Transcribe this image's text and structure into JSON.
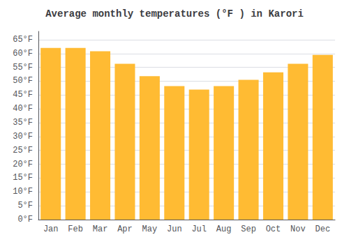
{
  "chart_data": {
    "type": "bar",
    "title": "Average monthly temperatures (°F ) in Karori",
    "categories": [
      "Jan",
      "Feb",
      "Mar",
      "Apr",
      "May",
      "Jun",
      "Jul",
      "Aug",
      "Sep",
      "Oct",
      "Nov",
      "Dec"
    ],
    "values": [
      62.0,
      62.0,
      60.8,
      56.3,
      51.8,
      48.2,
      47.0,
      48.2,
      50.5,
      53.2,
      56.3,
      59.5
    ],
    "color": "#FFBB33",
    "ylim": [
      0,
      68
    ],
    "yticks": [
      {
        "value": 0,
        "label": "0°F"
      },
      {
        "value": 5,
        "label": "5°F"
      },
      {
        "value": 10,
        "label": "10°F"
      },
      {
        "value": 15,
        "label": "15°F"
      },
      {
        "value": 20,
        "label": "20°F"
      },
      {
        "value": 25,
        "label": "25°F"
      },
      {
        "value": 30,
        "label": "30°F"
      },
      {
        "value": 35,
        "label": "35°F"
      },
      {
        "value": 40,
        "label": "40°F"
      },
      {
        "value": 45,
        "label": "45°F"
      },
      {
        "value": 50,
        "label": "50°F"
      },
      {
        "value": 55,
        "label": "55°F"
      },
      {
        "value": 60,
        "label": "60°F"
      },
      {
        "value": 65,
        "label": "65°F"
      }
    ],
    "grid": true
  }
}
